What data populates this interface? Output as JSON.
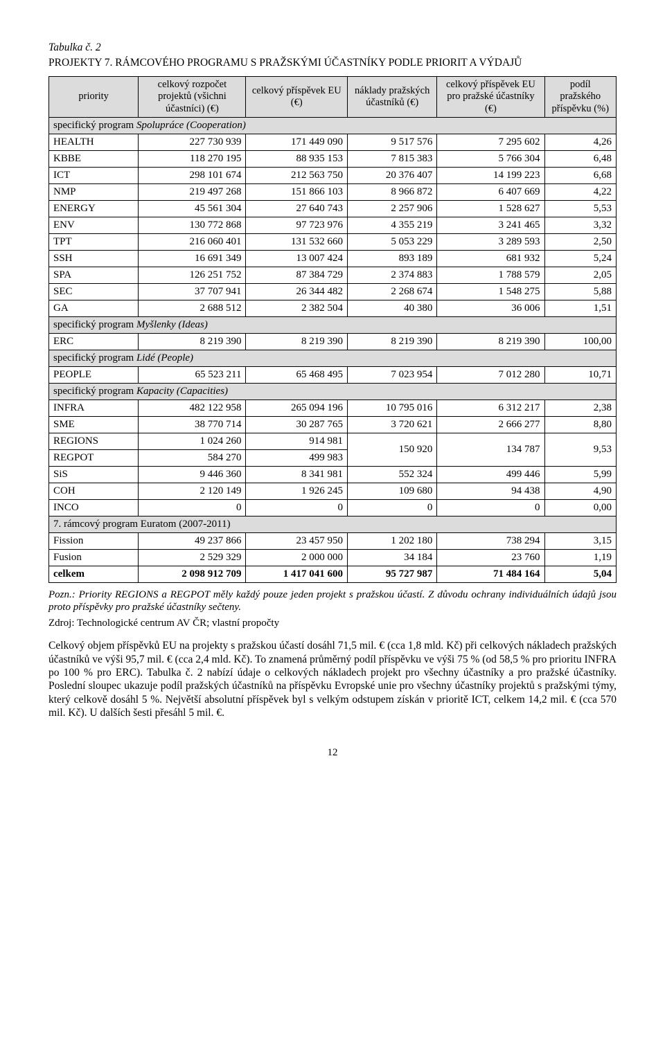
{
  "caption": "Tabulka č. 2",
  "title": "PROJEKTY 7. RÁMCOVÉHO PROGRAMU S PRAŽSKÝMI ÚČASTNÍKY PODLE PRIORIT A VÝDAJŮ",
  "columns": {
    "c0": "priority",
    "c1": "celkový rozpočet projektů (všichni účastníci) (€)",
    "c2": "celkový příspěvek EU (€)",
    "c3": "náklady pražských účastníků (€)",
    "c4": "celkový příspěvek EU pro pražské účastníky (€)",
    "c5": "podíl pražského příspěvku (%)"
  },
  "sections": [
    {
      "heading_plain": "specifický program ",
      "heading_italic": "Spolupráce (Cooperation)",
      "rows": [
        {
          "p": "HEALTH",
          "c1": "227 730 939",
          "c2": "171 449 090",
          "c3": "9 517 576",
          "c4": "7 295 602",
          "c5": "4,26"
        },
        {
          "p": "KBBE",
          "c1": "118 270 195",
          "c2": "88 935 153",
          "c3": "7 815 383",
          "c4": "5 766 304",
          "c5": "6,48"
        },
        {
          "p": "ICT",
          "c1": "298 101 674",
          "c2": "212 563 750",
          "c3": "20 376 407",
          "c4": "14 199 223",
          "c5": "6,68"
        },
        {
          "p": "NMP",
          "c1": "219 497 268",
          "c2": "151 866 103",
          "c3": "8 966 872",
          "c4": "6 407 669",
          "c5": "4,22"
        },
        {
          "p": "ENERGY",
          "c1": "45 561 304",
          "c2": "27 640 743",
          "c3": "2 257 906",
          "c4": "1 528 627",
          "c5": "5,53"
        },
        {
          "p": "ENV",
          "c1": "130 772 868",
          "c2": "97 723 976",
          "c3": "4 355 219",
          "c4": "3 241 465",
          "c5": "3,32"
        },
        {
          "p": "TPT",
          "c1": "216 060 401",
          "c2": "131 532 660",
          "c3": "5 053 229",
          "c4": "3 289 593",
          "c5": "2,50"
        },
        {
          "p": "SSH",
          "c1": "16 691 349",
          "c2": "13 007 424",
          "c3": "893 189",
          "c4": "681 932",
          "c5": "5,24"
        },
        {
          "p": "SPA",
          "c1": "126 251 752",
          "c2": "87 384 729",
          "c3": "2 374 883",
          "c4": "1 788 579",
          "c5": "2,05"
        },
        {
          "p": "SEC",
          "c1": "37 707 941",
          "c2": "26 344 482",
          "c3": "2 268 674",
          "c4": "1 548 275",
          "c5": "5,88"
        },
        {
          "p": "GA",
          "c1": "2 688 512",
          "c2": "2 382 504",
          "c3": "40 380",
          "c4": "36 006",
          "c5": "1,51"
        }
      ]
    },
    {
      "heading_plain": "specifický program ",
      "heading_italic": "Myšlenky (Ideas)",
      "rows": [
        {
          "p": "ERC",
          "c1": "8 219 390",
          "c2": "8 219 390",
          "c3": "8 219 390",
          "c4": "8 219 390",
          "c5": "100,00"
        }
      ]
    },
    {
      "heading_plain": "specifický program ",
      "heading_italic": "Lidé (People)",
      "rows": [
        {
          "p": "PEOPLE",
          "c1": "65 523 211",
          "c2": "65 468 495",
          "c3": "7 023 954",
          "c4": "7 012 280",
          "c5": "10,71"
        }
      ]
    },
    {
      "heading_plain": "specifický program ",
      "heading_italic": "Kapacity (Capacities)",
      "rows": [
        {
          "p": "INFRA",
          "c1": "482 122 958",
          "c2": "265 094 196",
          "c3": "10 795 016",
          "c4": "6 312 217",
          "c5": "2,38"
        },
        {
          "p": "SME",
          "c1": "38 770 714",
          "c2": "30 287 765",
          "c3": "3 720 621",
          "c4": "2 666 277",
          "c5": "8,80"
        }
      ],
      "merged": {
        "row_a": {
          "p": "REGIONS",
          "c1": "1 024 260",
          "c2": "914 981"
        },
        "row_b": {
          "p": "REGPOT",
          "c1": "584 270",
          "c2": "499 983"
        },
        "c3": "150 920",
        "c4": "134 787",
        "c5": "9,53"
      },
      "rows_after": [
        {
          "p": "SiS",
          "c1": "9 446 360",
          "c2": "8 341 981",
          "c3": "552 324",
          "c4": "499 446",
          "c5": "5,99"
        },
        {
          "p": "COH",
          "c1": "2 120 149",
          "c2": "1 926 245",
          "c3": "109 680",
          "c4": "94 438",
          "c5": "4,90"
        },
        {
          "p": "INCO",
          "c1": "0",
          "c2": "0",
          "c3": "0",
          "c4": "0",
          "c5": "0,00"
        }
      ]
    },
    {
      "heading_plain": "7. rámcový program Euratom (2007-2011)",
      "rows": [
        {
          "p": "Fission",
          "c1": "49 237 866",
          "c2": "23 457 950",
          "c3": "1 202 180",
          "c4": "738 294",
          "c5": "3,15"
        },
        {
          "p": "Fusion",
          "c1": "2 529 329",
          "c2": "2 000 000",
          "c3": "34 184",
          "c4": "23 760",
          "c5": "1,19"
        }
      ]
    }
  ],
  "total": {
    "p": "celkem",
    "c1": "2 098 912 709",
    "c2": "1 417 041 600",
    "c3": "95 727 987",
    "c4": "71 484 164",
    "c5": "5,04"
  },
  "note": "Pozn.: Priority REGIONS a REGPOT měly každý pouze jeden projekt s pražskou účastí. Z důvodu ochrany individuálních údajů jsou proto příspěvky pro pražské účastníky sečteny.",
  "source": "Zdroj: Technologické centrum AV ČR; vlastní propočty",
  "paragraph": "Celkový objem příspěvků EU na projekty s pražskou účastí dosáhl 71,5 mil. € (cca 1,8 mld. Kč) při celkových nákladech pražských účastníků ve výši 95,7 mil. € (cca 2,4 mld. Kč). To znamená průměrný podíl příspěvku ve výši 75 % (od 58,5 % pro prioritu INFRA po 100 % pro ERC). Tabulka č. 2 nabízí údaje o celkových nákladech projekt pro všechny účastníky a pro pražské účastníky. Poslední sloupec ukazuje podíl pražských účastníků na příspěvku Evropské unie pro všechny účastníky projektů s pražskými týmy, který celkově dosáhl 5 %. Největší absolutní příspěvek byl s velkým odstupem získán v prioritě ICT, celkem 14,2 mil. € (cca 570 mil. Kč). U dalších šesti přesáhl 5 mil. €.",
  "pagenum": "12"
}
